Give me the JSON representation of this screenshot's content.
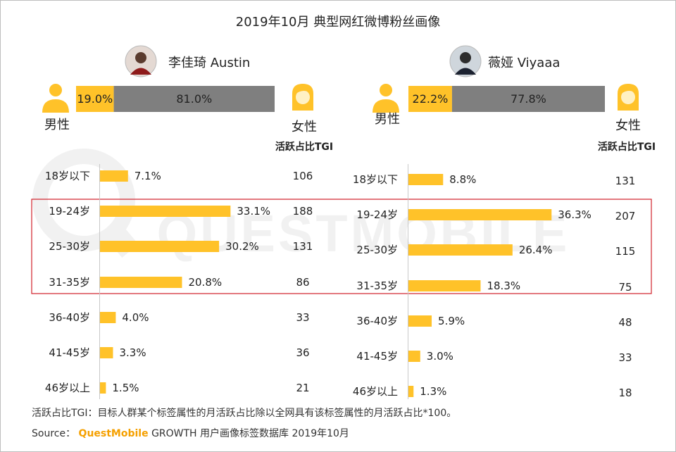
{
  "title": "2019年10月 典型网红微博粉丝画像",
  "colors": {
    "accent": "#FFC229",
    "gray": "#7F7F7F",
    "highlight_border": "#D0202A",
    "watermark": "#F0F0F0"
  },
  "watermark_text": "QUESTMOBILE",
  "labels": {
    "male": "男性",
    "female": "女性",
    "tgi_header": "活跃占比TGI"
  },
  "chart_data": [
    {
      "type": "bar",
      "influencer": "李佳琦 Austin",
      "gender": {
        "male": "19.0%",
        "female": "81.0%",
        "male_value": 19.0,
        "female_value": 81.0
      },
      "categories": [
        "18岁以下",
        "19-24岁",
        "25-30岁",
        "31-35岁",
        "36-40岁",
        "41-45岁",
        "46岁以上"
      ],
      "values": [
        7.1,
        33.1,
        30.2,
        20.8,
        4.0,
        3.3,
        1.5
      ],
      "value_labels": [
        "7.1%",
        "33.1%",
        "30.2%",
        "20.8%",
        "4.0%",
        "3.3%",
        "1.5%"
      ],
      "tgi": [
        "106",
        "188",
        "131",
        "86",
        "33",
        "36",
        "21"
      ]
    },
    {
      "type": "bar",
      "influencer": "薇娅 Viyaaa",
      "gender": {
        "male": "22.2%",
        "female": "77.8%",
        "male_value": 22.2,
        "female_value": 77.8
      },
      "categories": [
        "18岁以下",
        "19-24岁",
        "25-30岁",
        "31-35岁",
        "36-40岁",
        "41-45岁",
        "46岁以上"
      ],
      "values": [
        8.8,
        36.3,
        26.4,
        18.3,
        5.9,
        3.0,
        1.3
      ],
      "value_labels": [
        "8.8%",
        "36.3%",
        "26.4%",
        "18.3%",
        "5.9%",
        "3.0%",
        "1.3%"
      ],
      "tgi": [
        "131",
        "207",
        "115",
        "75",
        "48",
        "33",
        "18"
      ]
    }
  ],
  "highlight_categories": [
    "19-24岁",
    "25-30岁",
    "31-35岁"
  ],
  "footnote": "活跃占比TGI：目标人群某个标签属性的月活跃占比除以全网具有该标签属性的月活跃占比*100。",
  "source": {
    "label": "Source：",
    "brand": "QuestMobile",
    "rest": "GROWTH 用户画像标签数据库 2019年10月"
  }
}
